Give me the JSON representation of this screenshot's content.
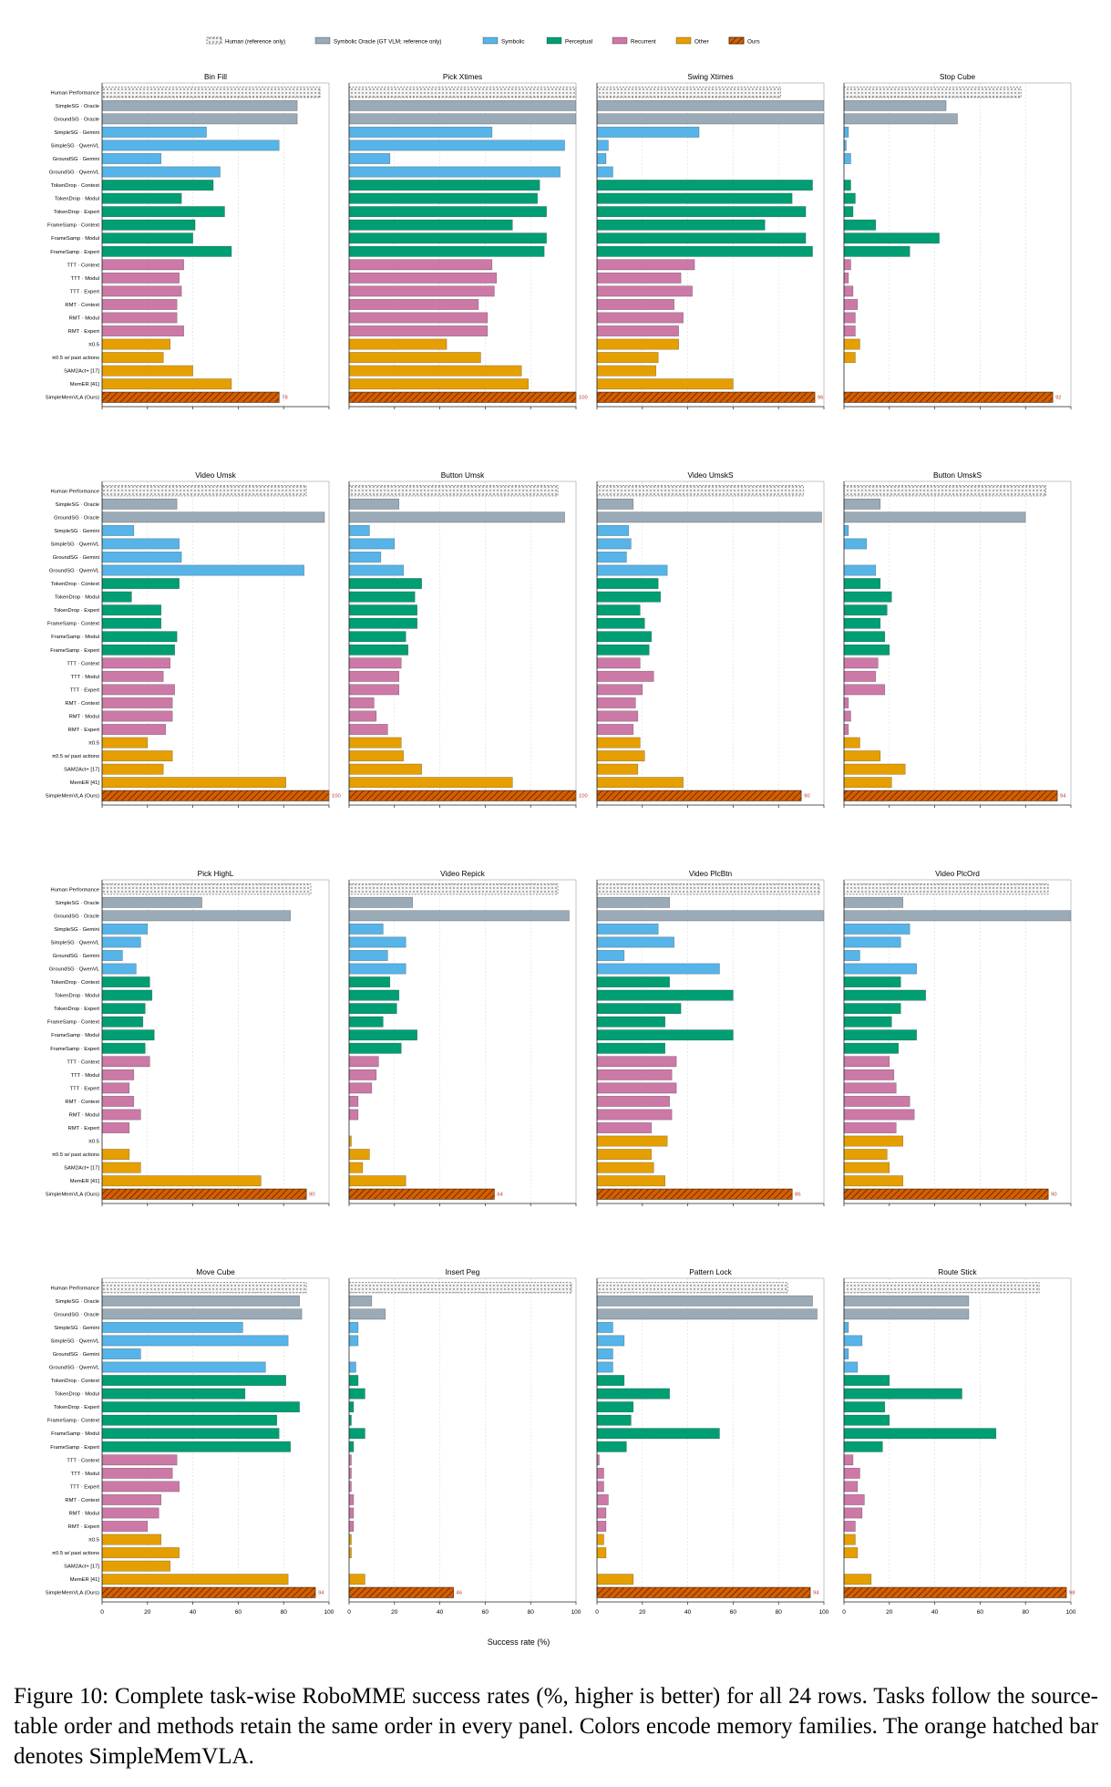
{
  "legend": {
    "items": [
      {
        "label": "Human (reference only)",
        "family": "human"
      },
      {
        "label": "Symbolic Oracle (GT VLM; reference only)",
        "family": "oracle"
      },
      {
        "label": "Symbolic",
        "family": "symbolic"
      },
      {
        "label": "Perceptual",
        "family": "perceptual"
      },
      {
        "label": "Recurrent",
        "family": "recurrent"
      },
      {
        "label": "Other",
        "family": "other"
      },
      {
        "label": "Ours",
        "family": "ours"
      }
    ]
  },
  "colors": {
    "human": "#f3f3f3",
    "oracle": "#9aaab7",
    "symbolic": "#56b4e9",
    "perceptual": "#009e73",
    "recurrent": "#cc79a7",
    "other": "#e69f00",
    "ours": "#d55e00",
    "value_label": "#c0392b"
  },
  "xaxis_label": "Success rate (%)",
  "caption": "Figure 10: Complete task-wise RoboMME success rates (%, higher is better) for all 24 rows. Tasks follow the source-table order and methods retain the same order in every panel.  Colors encode memory families. The orange hatched bar denotes SimpleMemVLA.",
  "chart_data": {
    "type": "bar",
    "orientation": "horizontal",
    "xlim": [
      0,
      100
    ],
    "xticks": [
      0,
      20,
      40,
      60,
      80,
      100
    ],
    "grid": true,
    "legend_position": "top-center",
    "methods": [
      {
        "label": "Human Performance",
        "family": "human"
      },
      {
        "label": "SimpleSG · Oracle",
        "family": "oracle"
      },
      {
        "label": "GroundSG · Oracle",
        "family": "oracle"
      },
      {
        "label": "SimpleSG · Gemini",
        "family": "symbolic"
      },
      {
        "label": "SimpleSG · QwenVL",
        "family": "symbolic"
      },
      {
        "label": "GroundSG · Gemini",
        "family": "symbolic"
      },
      {
        "label": "GroundSG · QwenVL",
        "family": "symbolic"
      },
      {
        "label": "TokenDrop · Context",
        "family": "perceptual"
      },
      {
        "label": "TokenDrop · Modul",
        "family": "perceptual"
      },
      {
        "label": "TokenDrop · Expert",
        "family": "perceptual"
      },
      {
        "label": "FrameSamp · Context",
        "family": "perceptual"
      },
      {
        "label": "FrameSamp · Modul",
        "family": "perceptual"
      },
      {
        "label": "FrameSamp · Expert",
        "family": "perceptual"
      },
      {
        "label": "TTT · Context",
        "family": "recurrent"
      },
      {
        "label": "TTT · Modul",
        "family": "recurrent"
      },
      {
        "label": "TTT · Expert",
        "family": "recurrent"
      },
      {
        "label": "RMT · Context",
        "family": "recurrent"
      },
      {
        "label": "RMT · Modul",
        "family": "recurrent"
      },
      {
        "label": "RMT · Expert",
        "family": "recurrent"
      },
      {
        "label": "π0.5",
        "family": "other"
      },
      {
        "label": "π0.5 w/ past actions",
        "family": "other"
      },
      {
        "label": "SAM2Act+ [17]",
        "family": "other"
      },
      {
        "label": "MemER [41]",
        "family": "other"
      },
      {
        "label": "SimpleMemVLA (Ours)",
        "family": "ours"
      }
    ],
    "panels": [
      {
        "title": "Bin Fill",
        "values": [
          96,
          86,
          86,
          46,
          78,
          26,
          52,
          49,
          35,
          54,
          41,
          40,
          57,
          36,
          34,
          35,
          33,
          33,
          36,
          30,
          27,
          40,
          57,
          78
        ],
        "label": "78"
      },
      {
        "title": "Pick Xtimes",
        "values": [
          100,
          100,
          100,
          63,
          95,
          18,
          93,
          84,
          83,
          87,
          72,
          87,
          86,
          63,
          65,
          64,
          57,
          61,
          61,
          43,
          58,
          76,
          79,
          100
        ],
        "label": "100"
      },
      {
        "title": "Swing Xtimes",
        "values": [
          81,
          100,
          100,
          45,
          5,
          4,
          7,
          95,
          86,
          92,
          74,
          92,
          95,
          43,
          37,
          42,
          34,
          38,
          36,
          36,
          27,
          26,
          60,
          96
        ],
        "label": "96"
      },
      {
        "title": "Stop Cube",
        "values": [
          78,
          45,
          50,
          2,
          1,
          3,
          0,
          3,
          5,
          4,
          14,
          42,
          29,
          3,
          2,
          4,
          6,
          5,
          5,
          7,
          5,
          0,
          0,
          92
        ],
        "label": "92"
      },
      {
        "title": "Video Umsk",
        "values": [
          90,
          33,
          98,
          14,
          34,
          35,
          89,
          34,
          13,
          26,
          26,
          33,
          32,
          30,
          27,
          32,
          31,
          31,
          28,
          20,
          31,
          27,
          81,
          100
        ],
        "label": "100"
      },
      {
        "title": "Button Umsk",
        "values": [
          92,
          22,
          95,
          9,
          20,
          14,
          24,
          32,
          29,
          30,
          30,
          25,
          26,
          23,
          22,
          22,
          11,
          12,
          17,
          23,
          24,
          32,
          72,
          100
        ],
        "label": "100"
      },
      {
        "title": "Video UmskS",
        "values": [
          91,
          16,
          99,
          14,
          15,
          13,
          31,
          27,
          28,
          19,
          21,
          24,
          23,
          19,
          25,
          20,
          17,
          18,
          16,
          19,
          21,
          18,
          38,
          90
        ],
        "label": "90"
      },
      {
        "title": "Button UmskS",
        "values": [
          89,
          16,
          80,
          2,
          10,
          0,
          14,
          16,
          21,
          19,
          16,
          18,
          20,
          15,
          14,
          18,
          2,
          3,
          2,
          7,
          16,
          27,
          21,
          94
        ],
        "label": "94"
      },
      {
        "title": "Pick HighL",
        "values": [
          92,
          44,
          83,
          20,
          17,
          9,
          15,
          21,
          22,
          19,
          18,
          23,
          19,
          21,
          14,
          12,
          14,
          17,
          12,
          0,
          12,
          17,
          70,
          90
        ],
        "label": "90"
      },
      {
        "title": "Video Repick",
        "values": [
          92,
          28,
          97,
          15,
          25,
          17,
          25,
          18,
          22,
          21,
          15,
          30,
          23,
          13,
          12,
          10,
          4,
          4,
          0,
          1,
          9,
          6,
          25,
          64
        ],
        "label": "64"
      },
      {
        "title": "Video PlcBtn",
        "values": [
          98,
          32,
          100,
          27,
          34,
          12,
          54,
          32,
          60,
          37,
          30,
          60,
          30,
          35,
          33,
          35,
          32,
          33,
          24,
          31,
          24,
          25,
          30,
          86
        ],
        "label": "86"
      },
      {
        "title": "Video PlcOrd",
        "values": [
          90,
          26,
          100,
          29,
          25,
          7,
          32,
          25,
          36,
          25,
          21,
          32,
          24,
          20,
          22,
          23,
          29,
          31,
          23,
          26,
          19,
          20,
          26,
          90
        ],
        "label": "90"
      },
      {
        "title": "Move Cube",
        "values": [
          90,
          87,
          88,
          62,
          82,
          17,
          72,
          81,
          63,
          87,
          77,
          78,
          83,
          33,
          31,
          34,
          26,
          25,
          20,
          26,
          34,
          30,
          82,
          94
        ],
        "label": "94"
      },
      {
        "title": "Insert Peg",
        "values": [
          98,
          10,
          16,
          4,
          4,
          0,
          3,
          4,
          7,
          2,
          1,
          7,
          2,
          1,
          1,
          1,
          2,
          2,
          2,
          1,
          1,
          0,
          7,
          46
        ],
        "label": "46"
      },
      {
        "title": "Pattern Lock",
        "values": [
          84,
          95,
          97,
          7,
          12,
          7,
          7,
          12,
          32,
          16,
          15,
          54,
          13,
          1,
          3,
          3,
          5,
          4,
          4,
          3,
          4,
          0,
          16,
          94
        ],
        "label": "94"
      },
      {
        "title": "Route Stick",
        "values": [
          86,
          55,
          55,
          2,
          8,
          2,
          6,
          20,
          52,
          18,
          20,
          67,
          17,
          4,
          7,
          6,
          9,
          8,
          5,
          5,
          6,
          0,
          12,
          98
        ],
        "label": "98"
      }
    ]
  }
}
